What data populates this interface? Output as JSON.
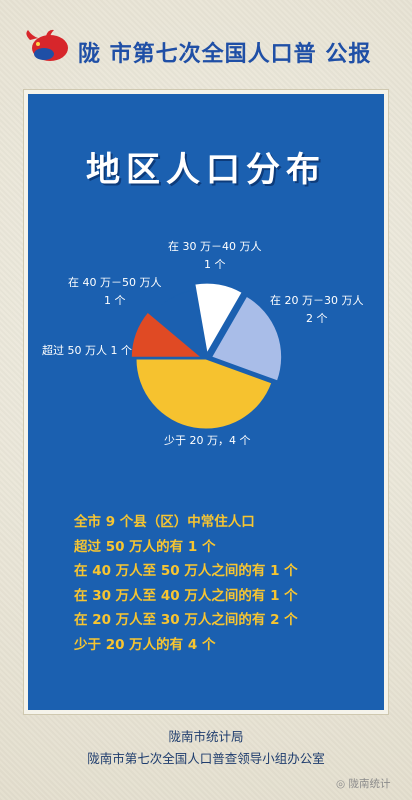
{
  "header": {
    "title": "陇 市第七次全国人口普 公报"
  },
  "panel": {
    "title": "地区人口分布"
  },
  "chart_data": {
    "type": "pie",
    "title": "地区人口分布",
    "slices": [
      {
        "label": "少于20万，4个",
        "value": 4,
        "color": "#f6c22f"
      },
      {
        "label": "在20万－30万人 2个",
        "value": 2,
        "color": "#a9bde8"
      },
      {
        "label": "在30万－40万人 1个",
        "value": 1,
        "color": "#ffffff"
      },
      {
        "label": "在40万－50万人 1个",
        "value": 1,
        "color": "#1b60b0"
      },
      {
        "label": "超过50万人1个",
        "value": 1,
        "color": "#e04a24"
      }
    ]
  },
  "labels": {
    "range_30_40_line1": "在 30 万－40 万人",
    "range_30_40_line2": "1 个",
    "range_20_30_line1": "在 20 万－30 万人",
    "range_20_30_line2": "2 个",
    "range_40_50_line1": "在 40 万－50 万人",
    "range_40_50_line2": "1 个",
    "over_50": "超过 50 万人 1 个",
    "under_20": "少于 20 万，4 个"
  },
  "stats": [
    "全市 9 个县（区）中常住人口",
    "超过 50 万人的有 1 个",
    "在 40 万人至 50 万人之间的有 1 个",
    "在 30 万人至 40 万人之间的有 1 个",
    "在 20 万人至 30 万人之间的有 2 个",
    "少于 20 万人的有 4 个"
  ],
  "footer": {
    "line1": "陇南市统计局",
    "line2": "陇南市第七次全国人口普查领导小组办公室"
  },
  "watermark": "陇南统计",
  "colors": {
    "panel_blue": "#1b60b0",
    "accent_yellow": "#f7c531",
    "header_blue": "#1f4fa6"
  }
}
